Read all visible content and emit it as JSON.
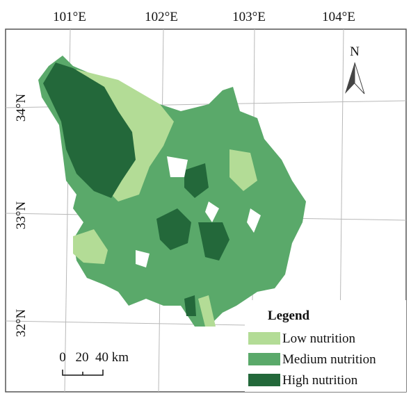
{
  "map": {
    "longitude_labels": [
      "101°E",
      "102°E",
      "103°E",
      "104°E"
    ],
    "latitude_labels": [
      "34°N",
      "33°N",
      "32°N"
    ],
    "north_label": "N",
    "legend": {
      "title": "Legend",
      "items": [
        {
          "label": "Low nutrition",
          "color": "#b3dc96"
        },
        {
          "label": "Medium nutrition",
          "color": "#5aa96a"
        },
        {
          "label": "High nutrition",
          "color": "#23683a"
        }
      ]
    },
    "scale_bar": {
      "labels": [
        "0",
        "20",
        "40 km"
      ]
    }
  }
}
